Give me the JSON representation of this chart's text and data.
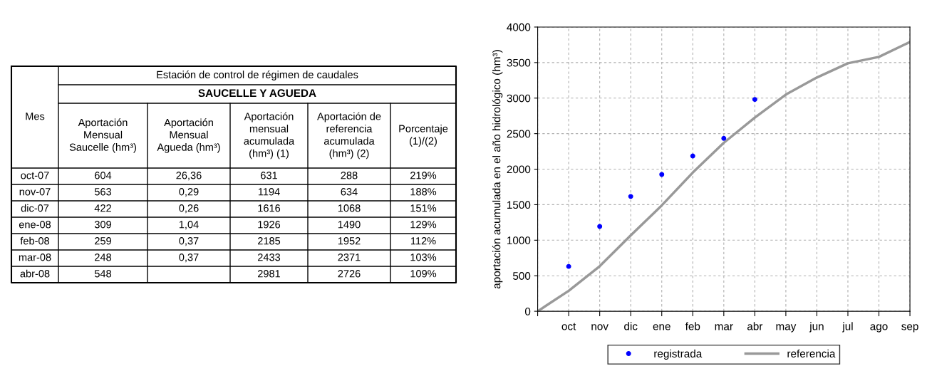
{
  "chart_data": [
    {
      "type": "other",
      "title": "Estación de control de régimen de caudales",
      "subtitle": "SAUCELLE Y AGUEDA",
      "categories": [
        "Mes",
        "Aportación\nMensual\nSaucelle (hm³)",
        "Aportación\nMensual\nAgueda (hm³)",
        "Aportación\nmensual\nacumulada\n(hm³) (1)",
        "Aportación de\nreferencia\nacumulada\n(hm³) (2)",
        "Porcentaje\n(1)/(2)"
      ],
      "cell_labels": [
        [
          "oct-07",
          "604",
          "26,36",
          "631",
          "288",
          "219%"
        ],
        [
          "nov-07",
          "563",
          "0,29",
          "1194",
          "634",
          "188%"
        ],
        [
          "dic-07",
          "422",
          "0,26",
          "1616",
          "1068",
          "151%"
        ],
        [
          "ene-08",
          "309",
          "1,04",
          "1926",
          "1490",
          "129%"
        ],
        [
          "feb-08",
          "259",
          "0,37",
          "2185",
          "1952",
          "112%"
        ],
        [
          "mar-08",
          "248",
          "0,37",
          "2433",
          "2371",
          "103%"
        ],
        [
          "abr-08",
          "548",
          null,
          "2981",
          "2726",
          "109%"
        ]
      ]
    },
    {
      "type": "line",
      "ylabel": "aportación acumulada en el año hidrológico (hm³)",
      "categories": [
        null,
        "oct",
        "nov",
        "dic",
        "ene",
        "feb",
        "mar",
        "abr",
        "may",
        "jun",
        "jul",
        "ago",
        "sep"
      ],
      "ylim": [
        0,
        4000
      ],
      "yticks": [
        0,
        500,
        1000,
        1500,
        2000,
        2500,
        3000,
        3500,
        4000
      ],
      "grid": true,
      "legend": "bottom",
      "series": [
        {
          "name": "registrada",
          "type": "scatter",
          "marker": "circle",
          "color": "#0000ff",
          "values": [
            null,
            631,
            1194,
            1616,
            1926,
            2185,
            2433,
            2981,
            null,
            null,
            null,
            null,
            null
          ]
        },
        {
          "name": "referencia",
          "type": "line",
          "marker": "none",
          "line_style": "solid",
          "color": "#999999",
          "values": [
            0,
            288,
            634,
            1068,
            1490,
            1952,
            2371,
            2726,
            3050,
            3290,
            3490,
            3580,
            3790
          ]
        }
      ]
    }
  ]
}
